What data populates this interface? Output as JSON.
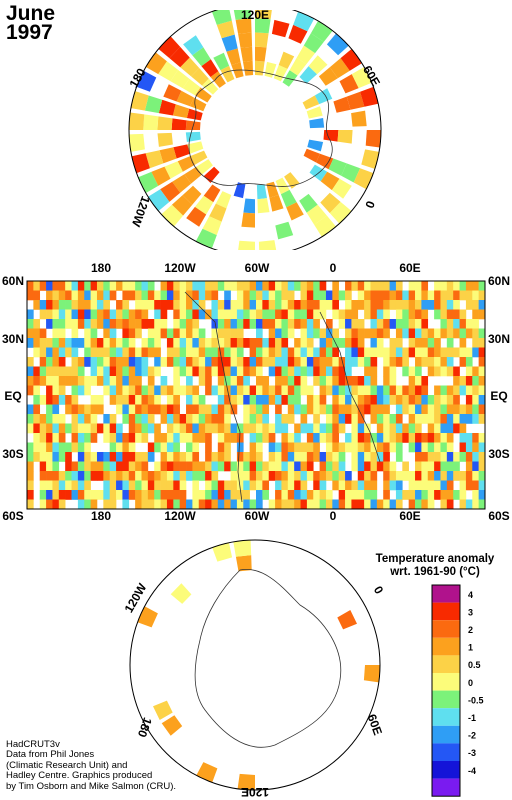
{
  "title": {
    "month": "June",
    "year": "1997"
  },
  "north_polar": {
    "labels": {
      "top": "120E",
      "upper_left": "180",
      "upper_right": "60E",
      "lower_left": "120W",
      "right": "0"
    }
  },
  "equatorial": {
    "top_lon": [
      "180",
      "120W",
      "60W",
      "0",
      "60E"
    ],
    "bottom_lon": [
      "180",
      "120W",
      "60W",
      "0",
      "60E"
    ],
    "left_lat": [
      "60N",
      "30N",
      "EQ",
      "30S",
      "60S"
    ],
    "right_lat": [
      "60N",
      "30N",
      "EQ",
      "30S",
      "60S"
    ]
  },
  "south_polar": {
    "labels": {
      "upper_left": "120W",
      "upper_right": "0",
      "lower_left": "180",
      "lower_right": "60E",
      "bottom": "120E"
    }
  },
  "legend": {
    "title_line1": "Temperature anomaly",
    "title_line2": "wrt. 1961-90  (°C)",
    "items": [
      {
        "label": "4",
        "color": "#b0128c"
      },
      {
        "label": "3",
        "color": "#f82a00"
      },
      {
        "label": "2",
        "color": "#fb6a10"
      },
      {
        "label": "1",
        "color": "#fca11e"
      },
      {
        "label": "0.5",
        "color": "#fcd247"
      },
      {
        "label": "0",
        "color": "#fcfc7a"
      },
      {
        "label": "-0.5",
        "color": "#7cf27a"
      },
      {
        "label": "-1",
        "color": "#5fdfef"
      },
      {
        "label": "-2",
        "color": "#2f9ef5"
      },
      {
        "label": "-3",
        "color": "#2457f5"
      },
      {
        "label": "-4",
        "color": "#1414d8"
      },
      {
        "label": "",
        "color": "#7a1bf0"
      }
    ]
  },
  "credits": [
    "HadCRUT3v",
    "Data from Phil Jones",
    "(Climatic Research Unit) and",
    "Hadley Centre.  Graphics produced",
    "by Tim Osborn and Mike Salmon (CRU)."
  ]
}
